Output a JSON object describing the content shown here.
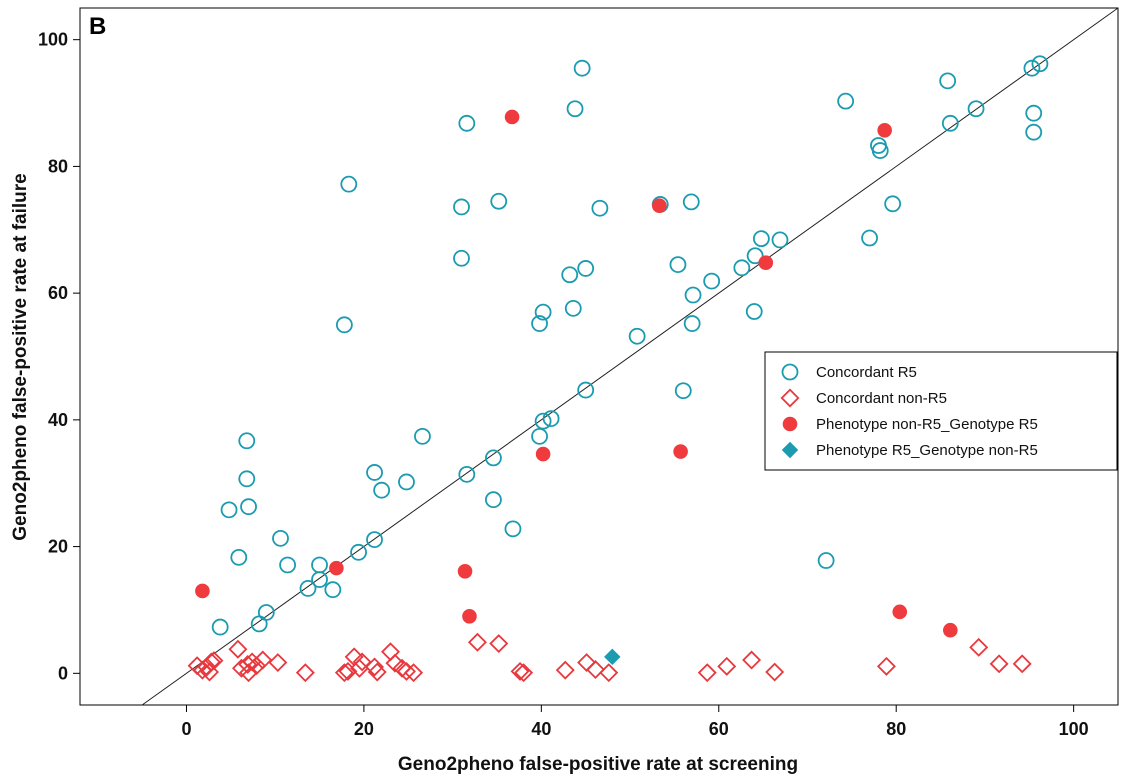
{
  "chart_data": {
    "type": "scatter",
    "panel_label": "B",
    "xlabel": "Geno2pheno false-positive rate at screening",
    "ylabel": "Geno2pheno false-positive rate at failure",
    "xlim": [
      -12,
      105
    ],
    "ylim": [
      -5,
      105
    ],
    "xticks": [
      0,
      20,
      40,
      60,
      80,
      100
    ],
    "yticks": [
      0,
      20,
      40,
      60,
      80,
      100
    ],
    "reference_line": "y = x",
    "grid": false,
    "legend_placement": "right",
    "series": [
      {
        "name": "Concordant R5",
        "marker": "circle-open",
        "color": "#1a9bb0",
        "points": [
          [
            3.8,
            7.3
          ],
          [
            4.8,
            25.8
          ],
          [
            5.9,
            18.3
          ],
          [
            6.8,
            36.7
          ],
          [
            6.8,
            30.7
          ],
          [
            7.0,
            26.3
          ],
          [
            8.2,
            7.8
          ],
          [
            9.0,
            9.6
          ],
          [
            10.6,
            21.3
          ],
          [
            11.4,
            17.1
          ],
          [
            13.7,
            13.4
          ],
          [
            15.0,
            17.1
          ],
          [
            15.0,
            14.8
          ],
          [
            16.5,
            13.2
          ],
          [
            17.8,
            55.0
          ],
          [
            18.3,
            77.2
          ],
          [
            19.4,
            19.1
          ],
          [
            21.2,
            31.7
          ],
          [
            21.2,
            21.1
          ],
          [
            22.0,
            28.9
          ],
          [
            24.8,
            30.2
          ],
          [
            26.6,
            37.4
          ],
          [
            31.0,
            73.6
          ],
          [
            31.0,
            65.5
          ],
          [
            31.6,
            86.8
          ],
          [
            31.6,
            31.4
          ],
          [
            34.6,
            34.0
          ],
          [
            34.6,
            27.4
          ],
          [
            35.2,
            74.5
          ],
          [
            36.8,
            22.8
          ],
          [
            39.8,
            37.4
          ],
          [
            39.8,
            55.2
          ],
          [
            40.2,
            57.0
          ],
          [
            40.2,
            39.8
          ],
          [
            41.1,
            40.2
          ],
          [
            43.2,
            62.9
          ],
          [
            43.6,
            57.6
          ],
          [
            43.8,
            89.1
          ],
          [
            44.6,
            95.5
          ],
          [
            45.0,
            63.9
          ],
          [
            45.0,
            44.7
          ],
          [
            46.6,
            73.4
          ],
          [
            50.8,
            53.2
          ],
          [
            53.4,
            74.0
          ],
          [
            55.4,
            64.5
          ],
          [
            56.0,
            44.6
          ],
          [
            56.9,
            74.4
          ],
          [
            57.0,
            55.2
          ],
          [
            57.1,
            59.7
          ],
          [
            59.2,
            61.9
          ],
          [
            62.6,
            64.0
          ],
          [
            64.0,
            57.1
          ],
          [
            64.1,
            65.9
          ],
          [
            64.8,
            68.6
          ],
          [
            66.9,
            68.4
          ],
          [
            72.1,
            17.8
          ],
          [
            74.3,
            90.3
          ],
          [
            77.0,
            68.7
          ],
          [
            78.0,
            83.3
          ],
          [
            78.2,
            82.5
          ],
          [
            79.6,
            74.1
          ],
          [
            85.8,
            93.5
          ],
          [
            86.1,
            86.8
          ],
          [
            89.0,
            89.1
          ],
          [
            95.3,
            95.5
          ],
          [
            95.5,
            88.4
          ],
          [
            95.5,
            85.4
          ],
          [
            96.2,
            96.2
          ]
        ]
      },
      {
        "name": "Concordant non-R5",
        "marker": "diamond-open",
        "color": "#e8383d",
        "points": [
          [
            1.2,
            1.2
          ],
          [
            1.8,
            0.5
          ],
          [
            2.3,
            1.0
          ],
          [
            2.6,
            0.2
          ],
          [
            2.8,
            1.8
          ],
          [
            3.1,
            2.0
          ],
          [
            5.8,
            3.8
          ],
          [
            6.2,
            0.8
          ],
          [
            6.9,
            1.4
          ],
          [
            7.0,
            0.1
          ],
          [
            7.4,
            1.8
          ],
          [
            7.9,
            1.2
          ],
          [
            8.6,
            2.1
          ],
          [
            10.3,
            1.7
          ],
          [
            13.4,
            0.1
          ],
          [
            17.8,
            0.1
          ],
          [
            18.2,
            0.3
          ],
          [
            18.9,
            2.6
          ],
          [
            19.5,
            0.8
          ],
          [
            19.8,
            1.8
          ],
          [
            21.2,
            1.0
          ],
          [
            21.5,
            0.2
          ],
          [
            23.0,
            3.4
          ],
          [
            23.5,
            1.6
          ],
          [
            24.3,
            0.8
          ],
          [
            24.8,
            0.3
          ],
          [
            25.6,
            0.1
          ],
          [
            32.8,
            4.9
          ],
          [
            35.2,
            4.7
          ],
          [
            37.6,
            0.3
          ],
          [
            38.0,
            0.1
          ],
          [
            42.7,
            0.5
          ],
          [
            45.1,
            1.7
          ],
          [
            46.1,
            0.6
          ],
          [
            47.6,
            0.1
          ],
          [
            58.7,
            0.1
          ],
          [
            60.9,
            1.1
          ],
          [
            63.7,
            2.1
          ],
          [
            66.3,
            0.2
          ],
          [
            78.9,
            1.1
          ],
          [
            89.3,
            4.1
          ],
          [
            91.6,
            1.5
          ],
          [
            94.2,
            1.5
          ]
        ]
      },
      {
        "name": "Phenotype non-R5_Genotype R5",
        "marker": "circle-filled",
        "color": "#ef3b3e",
        "points": [
          [
            1.8,
            13.0
          ],
          [
            16.9,
            16.6
          ],
          [
            31.4,
            16.1
          ],
          [
            31.9,
            9.0
          ],
          [
            36.7,
            87.8
          ],
          [
            40.2,
            34.6
          ],
          [
            53.3,
            73.8
          ],
          [
            55.7,
            35.0
          ],
          [
            65.3,
            64.8
          ],
          [
            78.7,
            85.7
          ],
          [
            80.4,
            9.7
          ],
          [
            86.1,
            6.8
          ]
        ]
      },
      {
        "name": "Phenotype R5_Genotype non-R5",
        "marker": "diamond-filled",
        "color": "#1a9bb0",
        "points": [
          [
            48.0,
            2.6
          ]
        ]
      }
    ]
  }
}
